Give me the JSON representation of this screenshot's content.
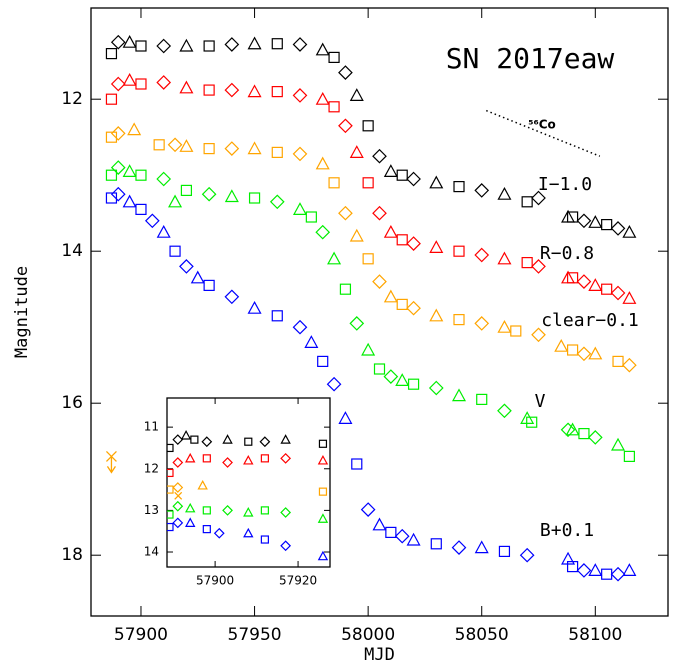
{
  "chart_data": [
    {
      "type": "scatter",
      "xlabel": "MJD",
      "ylabel": "Magnitude",
      "xlim": [
        57878,
        58132
      ],
      "ylim": [
        10.8,
        18.8
      ],
      "y_inverted": true,
      "xticks": [
        57900,
        57950,
        58000,
        58050,
        58100
      ],
      "yticks": [
        12,
        14,
        16,
        18
      ],
      "annotations": [
        {
          "text": "SN 2017eaw"
        },
        {
          "text": "⁵⁶Co"
        }
      ],
      "co_line": {
        "x": [
          58052,
          58102
        ],
        "y": [
          12.15,
          12.75
        ]
      },
      "series": [
        {
          "name": "I−1.0",
          "color": "#000000",
          "x": [
            57887,
            57890,
            57895,
            57900,
            57910,
            57920,
            57930,
            57940,
            57950,
            57960,
            57970,
            57980,
            57985,
            57990,
            57995,
            58000,
            58005,
            58010,
            58015,
            58020,
            58030,
            58040,
            58050,
            58060,
            58070,
            58075,
            58088,
            58090,
            58095,
            58100,
            58105,
            58110,
            58115
          ],
          "y": [
            11.4,
            11.25,
            11.25,
            11.3,
            11.3,
            11.3,
            11.3,
            11.28,
            11.27,
            11.27,
            11.28,
            11.35,
            11.45,
            11.65,
            11.95,
            12.35,
            12.75,
            12.95,
            13.0,
            13.05,
            13.1,
            13.15,
            13.2,
            13.25,
            13.35,
            13.3,
            13.55,
            13.55,
            13.6,
            13.62,
            13.65,
            13.7,
            13.75
          ]
        },
        {
          "name": "R−0.8",
          "color": "#ff0000",
          "x": [
            57887,
            57890,
            57895,
            57900,
            57910,
            57920,
            57930,
            57940,
            57950,
            57960,
            57970,
            57980,
            57985,
            57990,
            57995,
            58000,
            58005,
            58010,
            58015,
            58020,
            58030,
            58040,
            58050,
            58060,
            58070,
            58075,
            58088,
            58090,
            58095,
            58100,
            58105,
            58110,
            58115
          ],
          "y": [
            12.0,
            11.8,
            11.75,
            11.8,
            11.78,
            11.85,
            11.88,
            11.88,
            11.9,
            11.9,
            11.95,
            12.0,
            12.1,
            12.35,
            12.7,
            13.1,
            13.5,
            13.75,
            13.85,
            13.9,
            13.95,
            14.0,
            14.05,
            14.1,
            14.15,
            14.2,
            14.35,
            14.35,
            14.4,
            14.45,
            14.5,
            14.55,
            14.62
          ]
        },
        {
          "name": "clear−0.1",
          "color": "#ffa500",
          "x": [
            57887,
            57890,
            57897,
            57908,
            57915,
            57920,
            57930,
            57940,
            57950,
            57960,
            57970,
            57980,
            57985,
            57990,
            57995,
            58000,
            58005,
            58010,
            58015,
            58020,
            58030,
            58040,
            58050,
            58060,
            58065,
            58075,
            58085,
            58090,
            58095,
            58100,
            58110,
            58115
          ],
          "y": [
            12.5,
            12.45,
            12.4,
            12.6,
            12.6,
            12.62,
            12.65,
            12.65,
            12.65,
            12.7,
            12.72,
            12.85,
            13.1,
            13.5,
            13.8,
            14.1,
            14.4,
            14.6,
            14.7,
            14.75,
            14.85,
            14.9,
            14.95,
            15.0,
            15.05,
            15.1,
            15.25,
            15.3,
            15.35,
            15.35,
            15.45,
            15.5
          ]
        },
        {
          "name": "V",
          "color": "#00ee00",
          "x": [
            57887,
            57890,
            57895,
            57900,
            57910,
            57915,
            57920,
            57930,
            57940,
            57950,
            57960,
            57970,
            57975,
            57980,
            57985,
            57990,
            57995,
            58000,
            58005,
            58010,
            58015,
            58020,
            58030,
            58040,
            58050,
            58060,
            58070,
            58072,
            58088,
            58090,
            58095,
            58100,
            58110,
            58115
          ],
          "y": [
            13.0,
            12.9,
            12.95,
            13.0,
            13.05,
            13.35,
            13.2,
            13.25,
            13.28,
            13.3,
            13.35,
            13.45,
            13.55,
            13.75,
            14.1,
            14.5,
            14.95,
            15.3,
            15.55,
            15.65,
            15.7,
            15.75,
            15.8,
            15.9,
            15.95,
            16.1,
            16.2,
            16.25,
            16.35,
            16.35,
            16.4,
            16.45,
            16.55,
            16.7
          ]
        },
        {
          "name": "B+0.1",
          "color": "#0000ff",
          "x": [
            57887,
            57890,
            57895,
            57900,
            57905,
            57910,
            57915,
            57920,
            57925,
            57930,
            57940,
            57950,
            57960,
            57970,
            57975,
            57980,
            57985,
            57990,
            57995,
            58000,
            58005,
            58010,
            58015,
            58020,
            58030,
            58040,
            58050,
            58060,
            58070,
            58088,
            58090,
            58095,
            58100,
            58105,
            58110,
            58115
          ],
          "y": [
            13.3,
            13.25,
            13.35,
            13.45,
            13.6,
            13.75,
            14.0,
            14.2,
            14.35,
            14.45,
            14.6,
            14.75,
            14.85,
            15.0,
            15.2,
            15.45,
            15.75,
            16.2,
            16.8,
            17.4,
            17.6,
            17.7,
            17.75,
            17.8,
            17.85,
            17.9,
            17.9,
            17.95,
            18.0,
            18.05,
            18.15,
            18.2,
            18.2,
            18.25,
            18.25,
            18.2
          ]
        }
      ],
      "limit": {
        "color": "#ffa500",
        "x": [
          57887
        ],
        "y": [
          16.7
        ]
      }
    },
    {
      "type": "scatter",
      "xlim": [
        57888.4,
        57927.7
      ],
      "ylim": [
        10.3,
        14.36
      ],
      "y_inverted": true,
      "xticks": [
        57900,
        57920
      ],
      "yticks": [
        11,
        12,
        13,
        14
      ],
      "series": [
        {
          "color": "#000000",
          "x": [
            57889,
            57891,
            57893,
            57895,
            57898,
            57903,
            57908,
            57912,
            57917,
            57926
          ],
          "y": [
            11.5,
            11.3,
            11.2,
            11.3,
            11.35,
            11.3,
            11.35,
            11.35,
            11.3,
            11.4
          ]
        },
        {
          "color": "#ff0000",
          "x": [
            57889,
            57891,
            57894,
            57898,
            57903,
            57908,
            57912,
            57917,
            57926
          ],
          "y": [
            12.1,
            11.85,
            11.75,
            11.75,
            11.85,
            11.8,
            11.75,
            11.75,
            11.8
          ]
        },
        {
          "color": "#ffa500",
          "x": [
            57889,
            57891,
            57897,
            57926
          ],
          "y": [
            12.5,
            12.45,
            12.4,
            12.55
          ]
        },
        {
          "color": "#00ee00",
          "x": [
            57889,
            57891,
            57894,
            57898,
            57903,
            57908,
            57912,
            57917,
            57926
          ],
          "y": [
            13.1,
            12.9,
            12.95,
            13.0,
            13.0,
            13.05,
            13.0,
            13.05,
            13.2
          ]
        },
        {
          "color": "#0000ff",
          "x": [
            57889,
            57891,
            57894,
            57898,
            57901,
            57908,
            57912,
            57917,
            57926
          ],
          "y": [
            13.4,
            13.3,
            13.3,
            13.45,
            13.55,
            13.55,
            13.7,
            13.85,
            14.1
          ]
        }
      ],
      "limit": {
        "color": "#ffa500",
        "x": [
          57891.1
        ],
        "y": [
          12.65
        ]
      }
    }
  ]
}
